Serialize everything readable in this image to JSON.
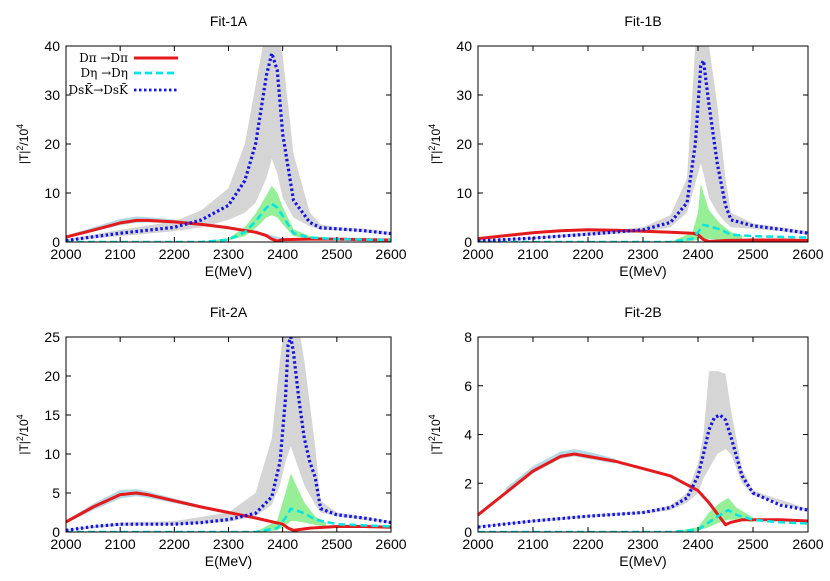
{
  "figure": {
    "x_unit_label": "E(MeV)",
    "y_label_main": "|T|",
    "y_label_sup": "2",
    "y_label_div": "/10",
    "y_label_sup2": "4"
  },
  "legend": {
    "entries": [
      {
        "label": "Dπ →Dπ",
        "color": "#e41a1c",
        "style": "solid"
      },
      {
        "label": "Dη →Dη",
        "color": "#00e5e5",
        "style": "dashed"
      },
      {
        "label": "DsK̄→DsK̄",
        "color": "#1414e6",
        "style": "dotted"
      }
    ]
  },
  "colors": {
    "red": "#e41a1c",
    "cyan": "#00e5e5",
    "blue": "#1414e6",
    "gray_band": "#d3d3d3",
    "light_blue_band": "#add8e6",
    "green_band": "#90ee90"
  },
  "chart_data": [
    {
      "type": "line",
      "title": "Fit-1A",
      "xlabel": "E(MeV)",
      "ylabel": "|T|^2/10^4",
      "xlim": [
        2000,
        2600
      ],
      "ylim": [
        0,
        40
      ],
      "xticks": [
        2000,
        2100,
        2200,
        2300,
        2400,
        2500,
        2600
      ],
      "yticks": [
        0,
        10,
        20,
        30,
        40
      ],
      "series": [
        {
          "name": "Dπ →Dπ",
          "x": [
            2000,
            2050,
            2100,
            2130,
            2150,
            2200,
            2250,
            2300,
            2350,
            2370,
            2380,
            2390,
            2400,
            2450,
            2500,
            2550,
            2600
          ],
          "values": [
            1.0,
            2.4,
            3.9,
            4.4,
            4.4,
            4.1,
            3.6,
            2.9,
            2.0,
            1.3,
            0.6,
            0.2,
            0.5,
            0.6,
            0.6,
            0.5,
            0.4
          ]
        },
        {
          "name": "Dη →Dη",
          "x": [
            2000,
            2250,
            2300,
            2330,
            2350,
            2370,
            2380,
            2390,
            2400,
            2420,
            2450,
            2500,
            2600
          ],
          "values": [
            0,
            0,
            0.5,
            2.0,
            4.2,
            7.0,
            7.8,
            7.0,
            5.3,
            1.8,
            0.9,
            0.6,
            0.4
          ]
        },
        {
          "name": "DsK̄→DsK̄",
          "x": [
            2000,
            2100,
            2200,
            2250,
            2300,
            2330,
            2350,
            2370,
            2380,
            2390,
            2400,
            2420,
            2450,
            2470,
            2500,
            2550,
            2600
          ],
          "values": [
            0.3,
            1.8,
            3.0,
            4.5,
            7.5,
            12.5,
            20.0,
            34.0,
            38.5,
            35.0,
            22.0,
            8.5,
            4.0,
            2.9,
            2.7,
            2.3,
            1.7
          ]
        }
      ],
      "bands": [
        {
          "name": "DsK̄ band",
          "x": [
            2000,
            2100,
            2200,
            2250,
            2300,
            2330,
            2350,
            2370,
            2380,
            2390,
            2400,
            2420,
            2450,
            2470,
            2500,
            2550,
            2600
          ],
          "lower": [
            0.2,
            1.2,
            2.2,
            3.0,
            4.5,
            6.0,
            8.0,
            13.0,
            17.0,
            14.0,
            9.0,
            5.0,
            3.2,
            2.5,
            2.4,
            2.0,
            1.4
          ],
          "upper": [
            0.5,
            2.5,
            4.2,
            6.5,
            11.0,
            20.0,
            32.0,
            44.0,
            44.0,
            44.0,
            38.0,
            18.0,
            6.0,
            3.6,
            3.0,
            2.7,
            2.1
          ]
        },
        {
          "name": "Dπ band",
          "x": [
            2000,
            2050,
            2100,
            2130,
            2150,
            2200,
            2250,
            2300,
            2350,
            2400
          ],
          "lower": [
            0.8,
            2.1,
            3.4,
            3.9,
            4.0,
            3.8,
            3.3,
            2.6,
            1.7,
            0.3
          ],
          "upper": [
            1.3,
            3.0,
            4.7,
            5.2,
            5.1,
            4.6,
            4.0,
            3.2,
            2.3,
            0.8
          ]
        },
        {
          "name": "Dη band",
          "x": [
            2250,
            2300,
            2330,
            2350,
            2370,
            2380,
            2390,
            2400,
            2420,
            2450,
            2500
          ],
          "lower": [
            0,
            0.3,
            1.2,
            2.8,
            5.0,
            5.5,
            5.0,
            3.6,
            1.2,
            0.6,
            0.5
          ],
          "upper": [
            0,
            0.8,
            3.0,
            5.8,
            9.5,
            11.5,
            10.0,
            7.2,
            2.6,
            1.2,
            0.8
          ]
        }
      ]
    },
    {
      "type": "line",
      "title": "Fit-1B",
      "xlabel": "E(MeV)",
      "ylabel": "|T|^2/10^4",
      "xlim": [
        2000,
        2600
      ],
      "ylim": [
        0,
        40
      ],
      "xticks": [
        2000,
        2100,
        2200,
        2300,
        2400,
        2500,
        2600
      ],
      "yticks": [
        0,
        10,
        20,
        30,
        40
      ],
      "series": [
        {
          "name": "Dπ →Dπ",
          "x": [
            2000,
            2100,
            2150,
            2200,
            2250,
            2300,
            2350,
            2390,
            2400,
            2410,
            2420,
            2450,
            2500,
            2550,
            2600
          ],
          "values": [
            0.7,
            1.9,
            2.3,
            2.5,
            2.4,
            2.2,
            2.0,
            1.8,
            1.5,
            0.5,
            0.1,
            0.3,
            0.4,
            0.4,
            0.3
          ]
        },
        {
          "name": "Dη →Dη",
          "x": [
            2000,
            2350,
            2390,
            2400,
            2410,
            2420,
            2440,
            2460,
            2500,
            2600
          ],
          "values": [
            0,
            0,
            0.7,
            2.0,
            3.5,
            3.2,
            2.6,
            1.5,
            1.2,
            0.9
          ]
        },
        {
          "name": "DsK̄→DsK̄",
          "x": [
            2000,
            2100,
            2200,
            2300,
            2350,
            2380,
            2395,
            2405,
            2410,
            2420,
            2435,
            2450,
            2460,
            2500,
            2550,
            2600
          ],
          "values": [
            0.2,
            0.8,
            1.6,
            2.5,
            4.0,
            8.0,
            20.0,
            36.0,
            37.0,
            28.0,
            16.0,
            7.5,
            4.5,
            3.3,
            2.6,
            1.8
          ]
        }
      ],
      "bands": [
        {
          "name": "DsK̄ band",
          "x": [
            2000,
            2100,
            2200,
            2300,
            2350,
            2380,
            2395,
            2405,
            2410,
            2420,
            2435,
            2450,
            2460,
            2500,
            2550,
            2600
          ],
          "lower": [
            0.2,
            0.6,
            1.3,
            2.0,
            3.0,
            6.0,
            12.0,
            16.0,
            14.0,
            9.0,
            6.0,
            4.0,
            3.0,
            2.7,
            2.2,
            1.5
          ],
          "upper": [
            0.3,
            1.0,
            2.0,
            3.0,
            5.5,
            13.0,
            40.0,
            44.0,
            44.0,
            40.0,
            28.0,
            13.0,
            6.0,
            3.8,
            3.0,
            2.2
          ]
        },
        {
          "name": "Dη band",
          "x": [
            2350,
            2390,
            2400,
            2405,
            2410,
            2420,
            2440,
            2460,
            2480
          ],
          "lower": [
            0,
            0.2,
            0.5,
            0.8,
            0.8,
            0.6,
            0.5,
            0.4,
            0.4
          ],
          "upper": [
            0,
            2.0,
            6.0,
            12.0,
            10.0,
            6.5,
            3.8,
            2.0,
            1.4
          ]
        }
      ]
    },
    {
      "type": "line",
      "title": "Fit-2A",
      "xlabel": "E(MeV)",
      "ylabel": "|T|^2/10^4",
      "xlim": [
        2000,
        2600
      ],
      "ylim": [
        0,
        25
      ],
      "xticks": [
        2000,
        2100,
        2200,
        2300,
        2400,
        2500,
        2600
      ],
      "yticks": [
        0,
        5,
        10,
        15,
        20,
        25
      ],
      "series": [
        {
          "name": "Dπ →Dπ",
          "x": [
            2000,
            2050,
            2100,
            2130,
            2150,
            2200,
            2250,
            2300,
            2350,
            2400,
            2410,
            2420,
            2450,
            2500,
            2550,
            2600
          ],
          "values": [
            1.3,
            3.2,
            4.8,
            5.0,
            4.8,
            4.0,
            3.2,
            2.5,
            1.8,
            1.0,
            0.5,
            0.2,
            0.5,
            0.7,
            0.7,
            0.6
          ]
        },
        {
          "name": "Dη →Dη",
          "x": [
            2000,
            2350,
            2390,
            2405,
            2415,
            2425,
            2440,
            2460,
            2500,
            2600
          ],
          "values": [
            0,
            0,
            0.5,
            1.8,
            3.0,
            2.8,
            2.4,
            1.6,
            1.0,
            0.7
          ]
        },
        {
          "name": "DsK̄→DsK̄",
          "x": [
            2000,
            2050,
            2100,
            2150,
            2200,
            2250,
            2300,
            2350,
            2380,
            2395,
            2405,
            2410,
            2415,
            2420,
            2430,
            2440,
            2450,
            2460,
            2470,
            2500,
            2550,
            2600
          ],
          "values": [
            0.2,
            0.7,
            1.0,
            1.0,
            1.0,
            1.2,
            1.6,
            2.4,
            4.5,
            9.0,
            17.0,
            24.0,
            25.0,
            23.0,
            17.0,
            12.0,
            9.0,
            7.0,
            3.0,
            2.2,
            1.8,
            1.2
          ]
        }
      ],
      "bands": [
        {
          "name": "DsK̄ band",
          "x": [
            2000,
            2100,
            2200,
            2300,
            2350,
            2380,
            2395,
            2405,
            2415,
            2425,
            2440,
            2460,
            2470,
            2500,
            2600
          ],
          "lower": [
            0.2,
            0.8,
            0.9,
            1.3,
            2.0,
            3.5,
            6.0,
            9.0,
            11.0,
            9.0,
            6.0,
            3.5,
            2.5,
            2.0,
            1.1
          ],
          "upper": [
            0.3,
            1.2,
            1.4,
            2.5,
            5.0,
            12.0,
            22.0,
            28.0,
            28.0,
            28.0,
            22.0,
            11.0,
            4.0,
            2.5,
            1.4
          ]
        },
        {
          "name": "Dπ band",
          "x": [
            2000,
            2050,
            2100,
            2130,
            2150,
            2200,
            2250,
            2300
          ],
          "lower": [
            1.1,
            2.8,
            4.3,
            4.6,
            4.4,
            3.7,
            3.0,
            2.3
          ],
          "upper": [
            1.5,
            3.6,
            5.4,
            5.5,
            5.2,
            4.3,
            3.4,
            2.7
          ]
        },
        {
          "name": "Dη band",
          "x": [
            2350,
            2390,
            2405,
            2415,
            2425,
            2440,
            2460,
            2480
          ],
          "lower": [
            0,
            0.2,
            0.8,
            1.4,
            1.4,
            1.2,
            0.9,
            0.7
          ],
          "upper": [
            0,
            1.5,
            5.0,
            7.5,
            6.0,
            3.8,
            2.0,
            1.2
          ]
        }
      ]
    },
    {
      "type": "line",
      "title": "Fit-2B",
      "xlabel": "E(MeV)",
      "ylabel": "|T|^2/10^4",
      "xlim": [
        2000,
        2600
      ],
      "ylim": [
        0,
        8
      ],
      "xticks": [
        2000,
        2100,
        2200,
        2300,
        2400,
        2500,
        2600
      ],
      "yticks": [
        0,
        2,
        4,
        6,
        8
      ],
      "series": [
        {
          "name": "Dπ →Dπ",
          "x": [
            2000,
            2050,
            2100,
            2150,
            2175,
            2200,
            2250,
            2300,
            2350,
            2400,
            2420,
            2440,
            2450,
            2460,
            2480,
            2500,
            2550,
            2600
          ],
          "values": [
            0.7,
            1.6,
            2.5,
            3.1,
            3.2,
            3.1,
            2.9,
            2.6,
            2.3,
            1.7,
            1.2,
            0.6,
            0.3,
            0.4,
            0.5,
            0.5,
            0.5,
            0.45
          ]
        },
        {
          "name": "Dη →Dη",
          "x": [
            2000,
            2350,
            2400,
            2420,
            2440,
            2455,
            2470,
            2500,
            2550,
            2600
          ],
          "values": [
            0,
            0,
            0.1,
            0.4,
            0.7,
            0.9,
            0.7,
            0.5,
            0.4,
            0.35
          ]
        },
        {
          "name": "DsK̄→DsK̄",
          "x": [
            2000,
            2100,
            2200,
            2300,
            2350,
            2380,
            2400,
            2410,
            2420,
            2430,
            2440,
            2450,
            2460,
            2480,
            2500,
            2550,
            2600
          ],
          "values": [
            0.2,
            0.45,
            0.65,
            0.8,
            1.0,
            1.4,
            2.3,
            3.2,
            4.2,
            4.7,
            4.8,
            4.6,
            3.9,
            2.3,
            1.6,
            1.1,
            0.9
          ]
        }
      ],
      "bands": [
        {
          "name": "DsK̄ band",
          "x": [
            2000,
            2100,
            2200,
            2300,
            2350,
            2380,
            2400,
            2410,
            2420,
            2435,
            2450,
            2460,
            2480,
            2500,
            2600
          ],
          "lower": [
            0.2,
            0.4,
            0.6,
            0.75,
            0.9,
            1.2,
            1.6,
            2.2,
            2.6,
            3.2,
            3.4,
            3.2,
            2.0,
            1.5,
            0.85
          ],
          "upper": [
            0.25,
            0.5,
            0.7,
            0.85,
            1.1,
            1.6,
            2.8,
            4.0,
            6.6,
            6.6,
            6.5,
            5.0,
            2.6,
            1.7,
            0.95
          ]
        },
        {
          "name": "Dπ band",
          "x": [
            2050,
            2100,
            2150,
            2175,
            2200,
            2250
          ],
          "lower": [
            1.5,
            2.4,
            3.0,
            3.1,
            3.0,
            2.8
          ],
          "upper": [
            1.8,
            2.7,
            3.3,
            3.4,
            3.3,
            3.0
          ]
        },
        {
          "name": "Dη band",
          "x": [
            2350,
            2400,
            2420,
            2440,
            2455,
            2470,
            2500
          ],
          "lower": [
            0,
            0.05,
            0.2,
            0.4,
            0.5,
            0.5,
            0.4
          ],
          "upper": [
            0,
            0.2,
            0.8,
            1.2,
            1.4,
            1.0,
            0.6
          ]
        }
      ]
    }
  ]
}
